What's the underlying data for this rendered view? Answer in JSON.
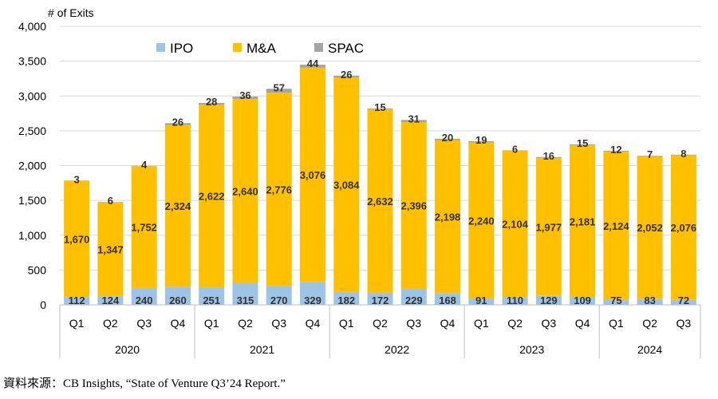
{
  "chart_data": {
    "type": "bar",
    "stacked": true,
    "ylabel": "# of Exits",
    "ylim": [
      0,
      4000
    ],
    "yticks": [
      0,
      500,
      1000,
      1500,
      2000,
      2500,
      3000,
      3500,
      4000
    ],
    "ytick_labels": [
      "0",
      "500",
      "1,000",
      "1,500",
      "2,000",
      "2,500",
      "3,000",
      "3,500",
      "4,000"
    ],
    "grid": true,
    "legend_position": "top",
    "categories": [
      "Q1",
      "Q2",
      "Q3",
      "Q4",
      "Q1",
      "Q2",
      "Q3",
      "Q4",
      "Q1",
      "Q2",
      "Q3",
      "Q4",
      "Q1",
      "Q2",
      "Q3",
      "Q4",
      "Q1",
      "Q2",
      "Q3"
    ],
    "year_groups": [
      {
        "label": "2020",
        "count": 4
      },
      {
        "label": "2021",
        "count": 4
      },
      {
        "label": "2022",
        "count": 4
      },
      {
        "label": "2023",
        "count": 4
      },
      {
        "label": "2024",
        "count": 3
      }
    ],
    "series": [
      {
        "name": "IPO",
        "color": "#9DC3E6",
        "values": [
          112,
          124,
          240,
          260,
          251,
          315,
          270,
          329,
          182,
          172,
          229,
          168,
          91,
          110,
          129,
          109,
          75,
          83,
          72
        ],
        "labels": [
          "112",
          "124",
          "240",
          "260",
          "251",
          "315",
          "270",
          "329",
          "182",
          "172",
          "229",
          "168",
          "91",
          "110",
          "129",
          "109",
          "75",
          "83",
          "72"
        ]
      },
      {
        "name": "M&A",
        "color": "#FFC000",
        "values": [
          1670,
          1347,
          1752,
          2324,
          2622,
          2640,
          2776,
          3076,
          3084,
          2632,
          2396,
          2198,
          2240,
          2104,
          1977,
          2181,
          2124,
          2052,
          2076
        ],
        "labels": [
          "1,670",
          "1,347",
          "1,752",
          "2,324",
          "2,622",
          "2,640",
          "2,776",
          "3,076",
          "3,084",
          "2,632",
          "2,396",
          "2,198",
          "2,240",
          "2,104",
          "1,977",
          "2,181",
          "2,124",
          "2,052",
          "2,076"
        ]
      },
      {
        "name": "SPAC",
        "color": "#A5A5A5",
        "values": [
          3,
          6,
          4,
          26,
          28,
          36,
          57,
          44,
          26,
          15,
          31,
          20,
          19,
          6,
          16,
          15,
          12,
          7,
          8
        ],
        "labels": [
          "3",
          "6",
          "4",
          "26",
          "28",
          "36",
          "57",
          "44",
          "26",
          "15",
          "31",
          "20",
          "19",
          "6",
          "16",
          "15",
          "12",
          "7",
          "8"
        ]
      }
    ]
  },
  "source_note": "資料來源：CB Insights, “State of Venture Q3’24 Report.”"
}
